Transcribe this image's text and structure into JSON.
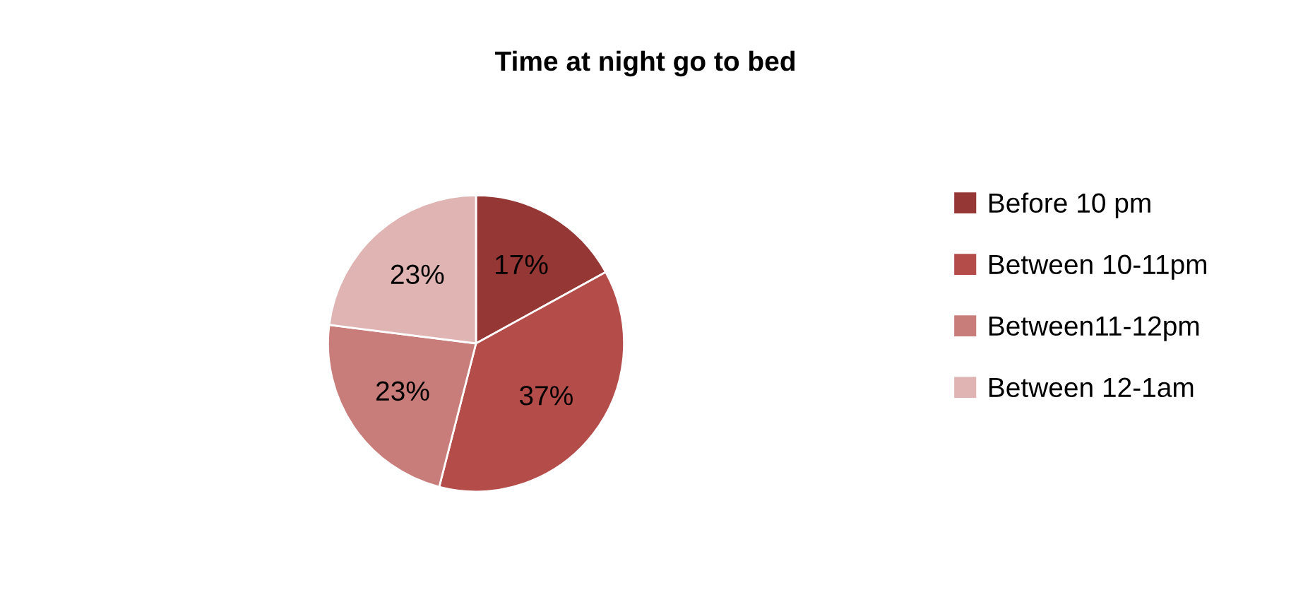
{
  "chart_data": {
    "type": "pie",
    "title": "Time at night go to bed",
    "categories": [
      "Before 10 pm",
      "Between 10-11pm",
      "Between11-12pm",
      "Between 12-1am"
    ],
    "values": [
      17,
      37,
      23,
      23
    ],
    "value_labels": [
      "17%",
      "37%",
      "23%",
      "23%"
    ],
    "colors": [
      "#953735",
      "#b44c4a",
      "#c97d7b",
      "#dfb4b3"
    ],
    "legend": "right"
  }
}
